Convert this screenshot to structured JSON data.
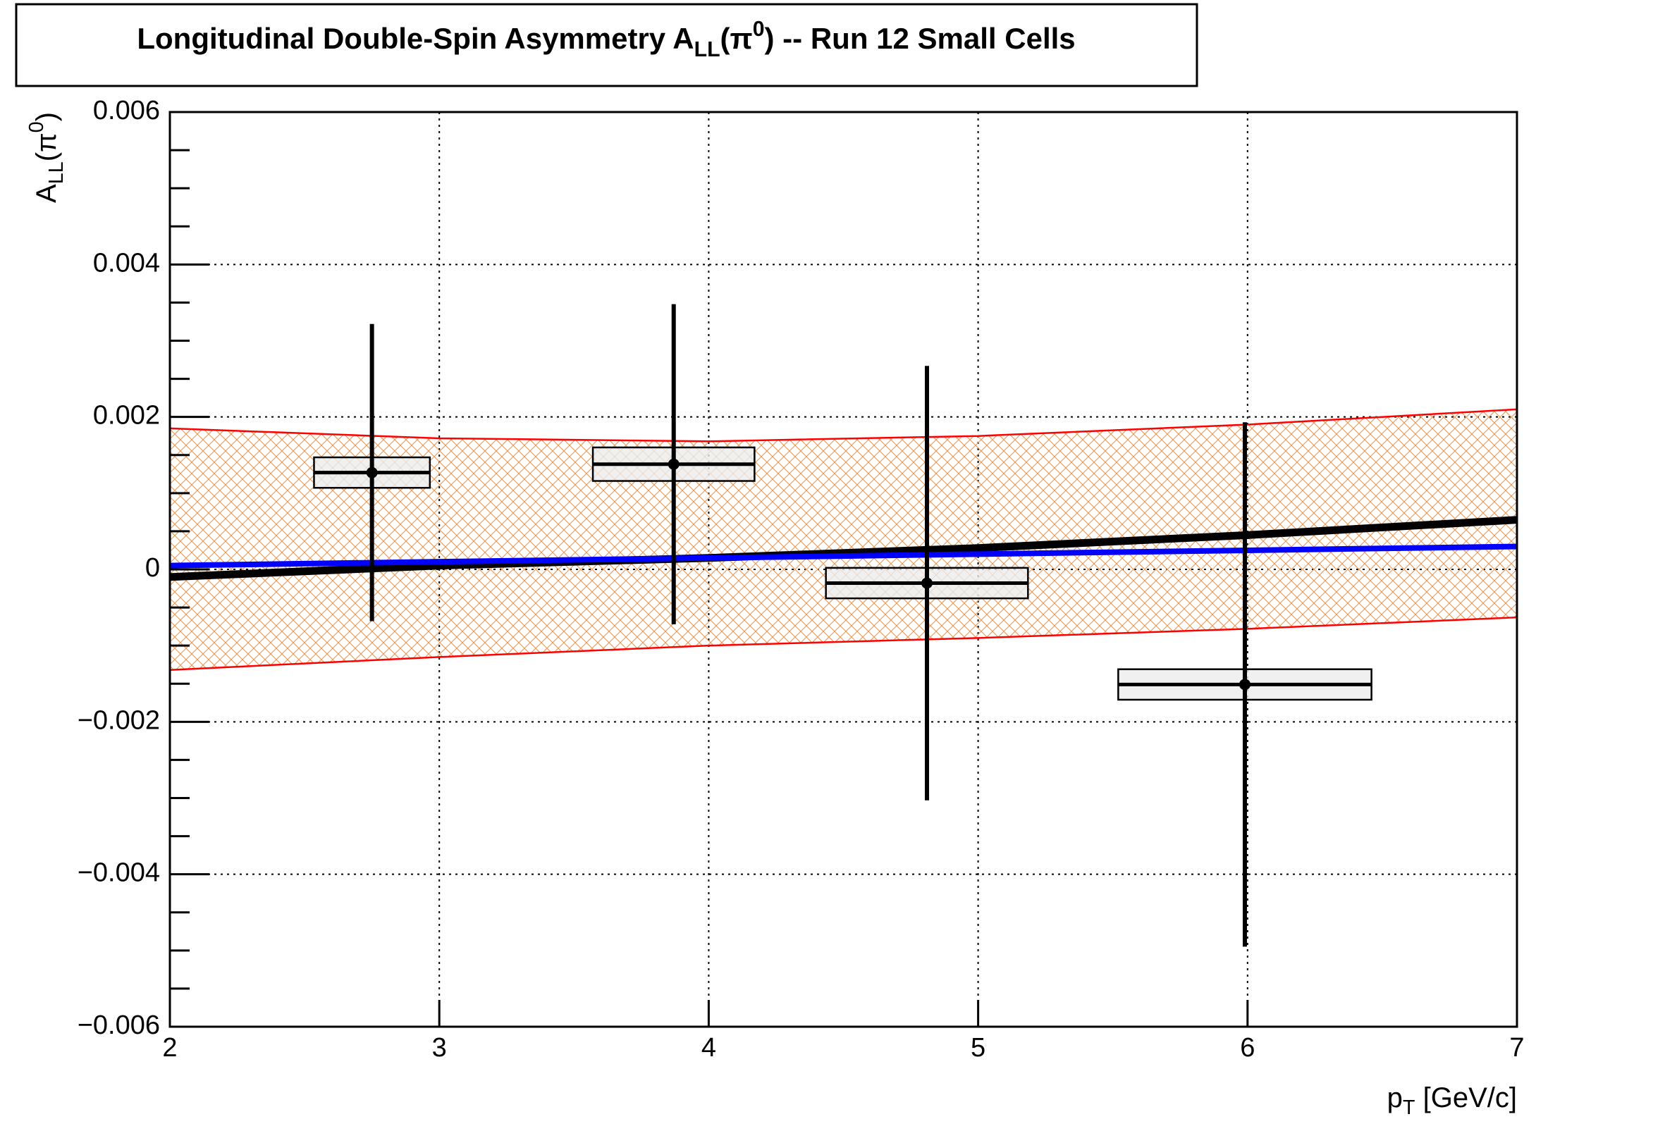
{
  "chart_data": {
    "type": "asymmetry",
    "title": [
      "Longitudinal Double-Spin Asymmetry A",
      "LL",
      "(π",
      "0",
      ") -- Run 12 Small Cells"
    ],
    "y_label": [
      "A",
      "LL",
      "(π",
      "0",
      ")"
    ],
    "x_label": [
      "p",
      "T",
      " [GeV/c]"
    ],
    "xlim": [
      2,
      7
    ],
    "ylim": [
      -0.006,
      0.006
    ],
    "xticks": [
      2,
      3,
      4,
      5,
      6,
      7
    ],
    "yticks": [
      {
        "value": -0.006,
        "label": "−0.006"
      },
      {
        "value": -0.004,
        "label": "−0.004"
      },
      {
        "value": -0.002,
        "label": "−0.002"
      },
      0,
      0.002,
      0.004,
      0.006
    ],
    "y_minor_ticks": [
      -0.0055,
      -0.005,
      -0.0045,
      -0.0035,
      -0.003,
      -0.0025,
      -0.0015,
      -0.001,
      -0.0005,
      0.0005,
      0.001,
      0.0015,
      0.0025,
      0.003,
      0.0035,
      0.0045,
      0.005,
      0.0055
    ],
    "grid": true,
    "curve_x": [
      2,
      3,
      4,
      5,
      6,
      7
    ],
    "band": {
      "color": "#e8a060",
      "line_color": "#ff0000",
      "upper": [
        0.00185,
        0.00172,
        0.00168,
        0.00175,
        0.0019,
        0.0021
      ],
      "lower": [
        -0.00132,
        -0.00115,
        -0.001,
        -0.0009,
        -0.00078,
        -0.00063
      ]
    },
    "curves": [
      {
        "color": "#000000",
        "values": [
          -0.0001,
          5e-05,
          0.00015,
          0.00028,
          0.00045,
          0.00065
        ]
      },
      {
        "color": "#0000ff",
        "values": [
          5e-05,
          0.0001,
          0.00015,
          0.0002,
          0.00025,
          0.0003
        ]
      }
    ],
    "points": {
      "color": "#000000",
      "x": [
        2.75,
        3.87,
        4.81,
        5.99
      ],
      "values": [
        0.00127,
        0.00138,
        -0.00018,
        -0.00151
      ],
      "errors": [
        0.00195,
        0.0021,
        0.00285,
        0.00344
      ],
      "sys_x": [
        0.215,
        0.3,
        0.375,
        0.47
      ],
      "sys_y": [
        0.0002,
        0.00022,
        0.0002,
        0.0002
      ]
    }
  }
}
